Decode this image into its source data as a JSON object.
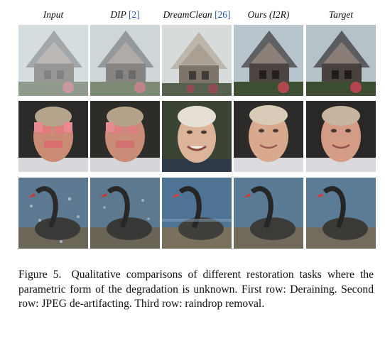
{
  "figure": {
    "columns": [
      {
        "label": "Input",
        "cite": ""
      },
      {
        "label": "DIP",
        "cite": "[2]"
      },
      {
        "label": "DreamClean",
        "cite": "[26]"
      },
      {
        "label": "Ours (I2R)",
        "cite": ""
      },
      {
        "label": "Target",
        "cite": ""
      }
    ],
    "rows": [
      {
        "scene": "house"
      },
      {
        "scene": "face"
      },
      {
        "scene": "swan"
      }
    ]
  },
  "caption": {
    "label": "Figure 5.",
    "text": "Qualitative comparisons of different restoration tasks where the parametric form of the degradation is unknown. First row: Deraining. Second row: JPEG de-artifacting. Third row: raindrop removal."
  }
}
